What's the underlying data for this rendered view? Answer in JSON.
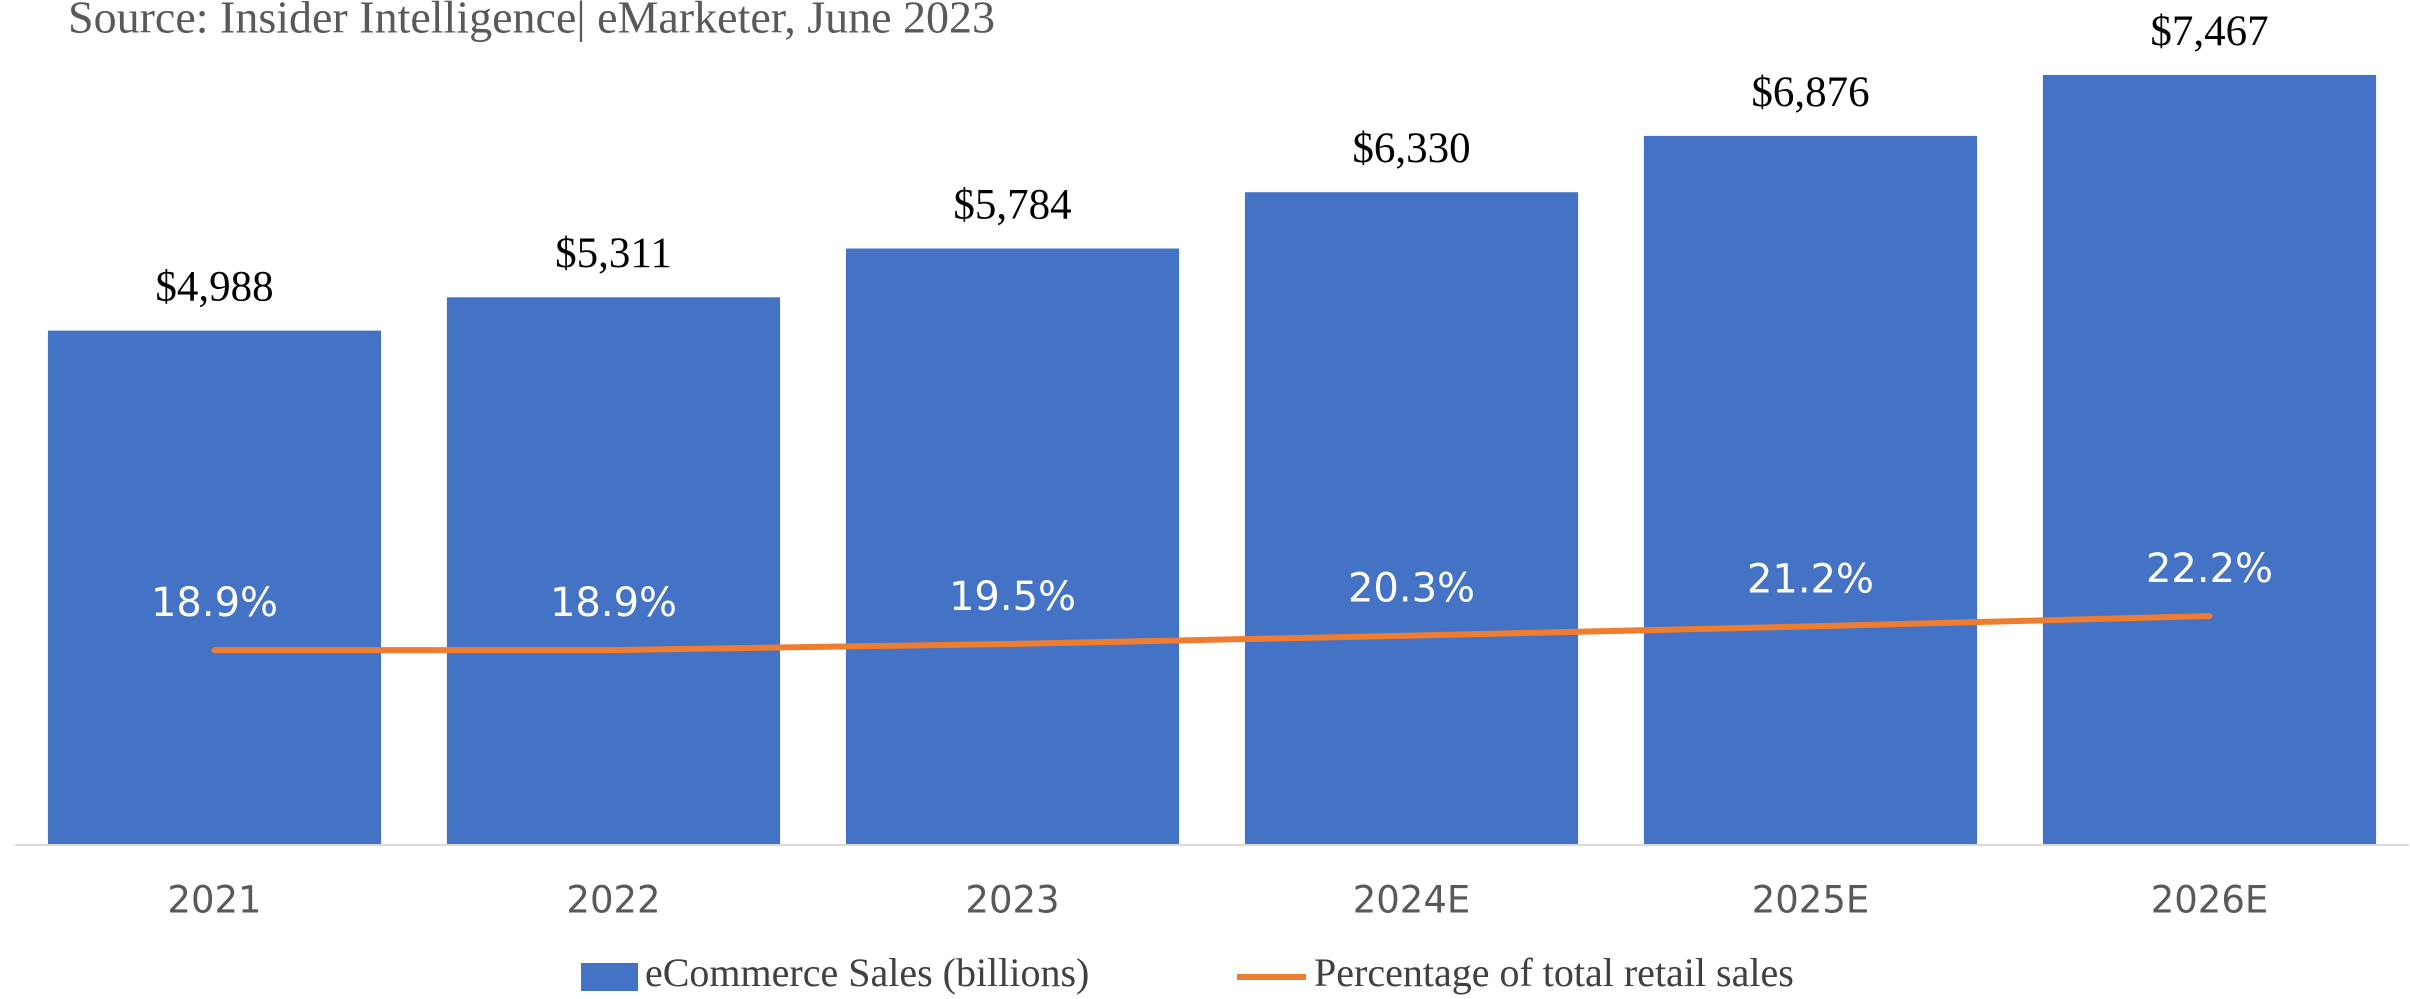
{
  "chart_data": {
    "type": "bar",
    "subtitle": "Source:  Insider Intelligence| eMarketer, June 2023",
    "categories": [
      "2021",
      "2022",
      "2023",
      "2024E",
      "2025E",
      "2026E"
    ],
    "series": [
      {
        "name": "eCommerce Sales (billions)",
        "color": "#4472c4",
        "type": "bar",
        "values": [
          4988,
          5311,
          5784,
          6330,
          6876,
          7467
        ],
        "value_labels": [
          "$4,988",
          "$5,311",
          "$5,784",
          "$6,330",
          "$6,876",
          "$7,467"
        ]
      },
      {
        "name": "Percentage of total retail sales",
        "color": "#ed7d31",
        "type": "line",
        "axis": "y2",
        "values": [
          18.9,
          18.9,
          19.5,
          20.3,
          21.2,
          22.2
        ],
        "value_labels": [
          "18.9%",
          "18.9%",
          "19.5%",
          "20.3%",
          "21.2%",
          "22.2%"
        ]
      }
    ],
    "ylim": [
      0,
      8000
    ],
    "y2lim": [
      0,
      80
    ],
    "legend": "bottom"
  }
}
